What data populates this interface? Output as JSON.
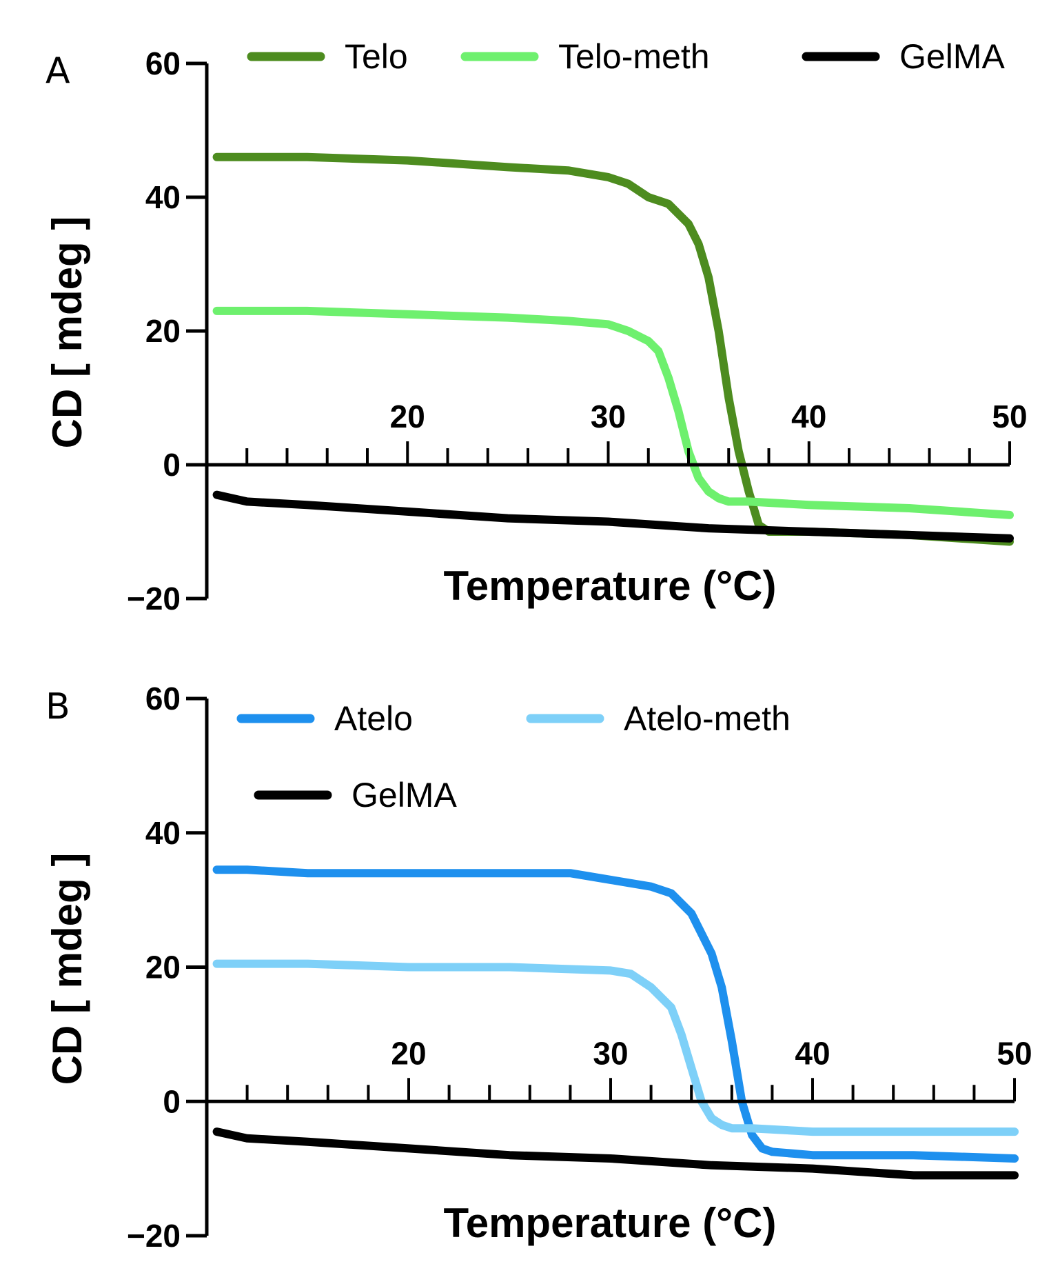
{
  "chart_data": [
    {
      "panel": "A",
      "type": "line",
      "xlabel": "Temperature (°C)",
      "ylabel": "CD [ mdeg ]",
      "xlim": [
        10,
        50
      ],
      "ylim": [
        -20,
        60
      ],
      "xticks": [
        20,
        30,
        40,
        50
      ],
      "yticks": [
        -20,
        0,
        20,
        40,
        60
      ],
      "xtick_labels": [
        "20",
        "30",
        "40",
        "50"
      ],
      "ytick_labels": [
        "−20",
        "0",
        "20",
        "40",
        "60"
      ],
      "legend": "top",
      "series": [
        {
          "name": "Telo",
          "color": "#4d8c1f",
          "x": [
            10.5,
            12,
            15,
            20,
            25,
            28,
            30,
            31,
            32,
            33,
            34,
            34.5,
            35,
            35.5,
            36,
            36.5,
            37,
            37.5,
            38,
            40,
            45,
            50
          ],
          "y": [
            46,
            46,
            46,
            45.5,
            44.5,
            44,
            43,
            42,
            40,
            39,
            36,
            33,
            28,
            20,
            10,
            2,
            -4,
            -9,
            -10,
            -10,
            -10.5,
            -11.5
          ]
        },
        {
          "name": "Telo-meth",
          "color": "#6ef06e",
          "x": [
            10.5,
            12,
            15,
            20,
            25,
            28,
            30,
            31,
            32,
            32.5,
            33,
            33.5,
            34,
            34.5,
            35,
            35.5,
            36,
            37,
            40,
            45,
            50
          ],
          "y": [
            23,
            23,
            23,
            22.5,
            22,
            21.5,
            21,
            20,
            18.5,
            17,
            13,
            8,
            2,
            -2,
            -4,
            -5,
            -5.5,
            -5.5,
            -6,
            -6.5,
            -7.5
          ]
        },
        {
          "name": "GelMA",
          "color": "#000000",
          "x": [
            10.5,
            12,
            15,
            20,
            25,
            30,
            35,
            40,
            45,
            50
          ],
          "y": [
            -4.5,
            -5.5,
            -6,
            -7,
            -8,
            -8.5,
            -9.5,
            -10,
            -10.5,
            -11
          ]
        }
      ]
    },
    {
      "panel": "B",
      "type": "line",
      "xlabel": "Temperature (°C)",
      "ylabel": "CD [ mdeg ]",
      "xlim": [
        10,
        50
      ],
      "ylim": [
        -20,
        60
      ],
      "xticks": [
        20,
        30,
        40,
        50
      ],
      "yticks": [
        -20,
        0,
        20,
        40,
        60
      ],
      "xtick_labels": [
        "20",
        "30",
        "40",
        "50"
      ],
      "ytick_labels": [
        "−20",
        "0",
        "20",
        "40",
        "60"
      ],
      "legend": "top",
      "series": [
        {
          "name": "Atelo",
          "color": "#1e90ee",
          "x": [
            10.5,
            12,
            15,
            20,
            25,
            28,
            30,
            32,
            33,
            34,
            35,
            35.5,
            36,
            36.5,
            37,
            37.5,
            38,
            40,
            45,
            50
          ],
          "y": [
            34.5,
            34.5,
            34,
            34,
            34,
            34,
            33,
            32,
            31,
            28,
            22,
            17,
            9,
            0,
            -5,
            -7,
            -7.5,
            -8,
            -8,
            -8.5
          ]
        },
        {
          "name": "Atelo-meth",
          "color": "#7ed0f8",
          "x": [
            10.5,
            12,
            15,
            20,
            25,
            30,
            31,
            32,
            33,
            33.5,
            34,
            34.5,
            35,
            35.5,
            36,
            37,
            40,
            45,
            50
          ],
          "y": [
            20.5,
            20.5,
            20.5,
            20,
            20,
            19.5,
            19,
            17,
            14,
            10,
            5,
            0,
            -2.5,
            -3.5,
            -4,
            -4,
            -4.5,
            -4.5,
            -4.5
          ]
        },
        {
          "name": "GelMA",
          "color": "#000000",
          "x": [
            10.5,
            12,
            15,
            20,
            25,
            30,
            35,
            40,
            45,
            50
          ],
          "y": [
            -4.5,
            -5.5,
            -6,
            -7,
            -8,
            -8.5,
            -9.5,
            -10,
            -11,
            -11
          ]
        }
      ]
    }
  ]
}
